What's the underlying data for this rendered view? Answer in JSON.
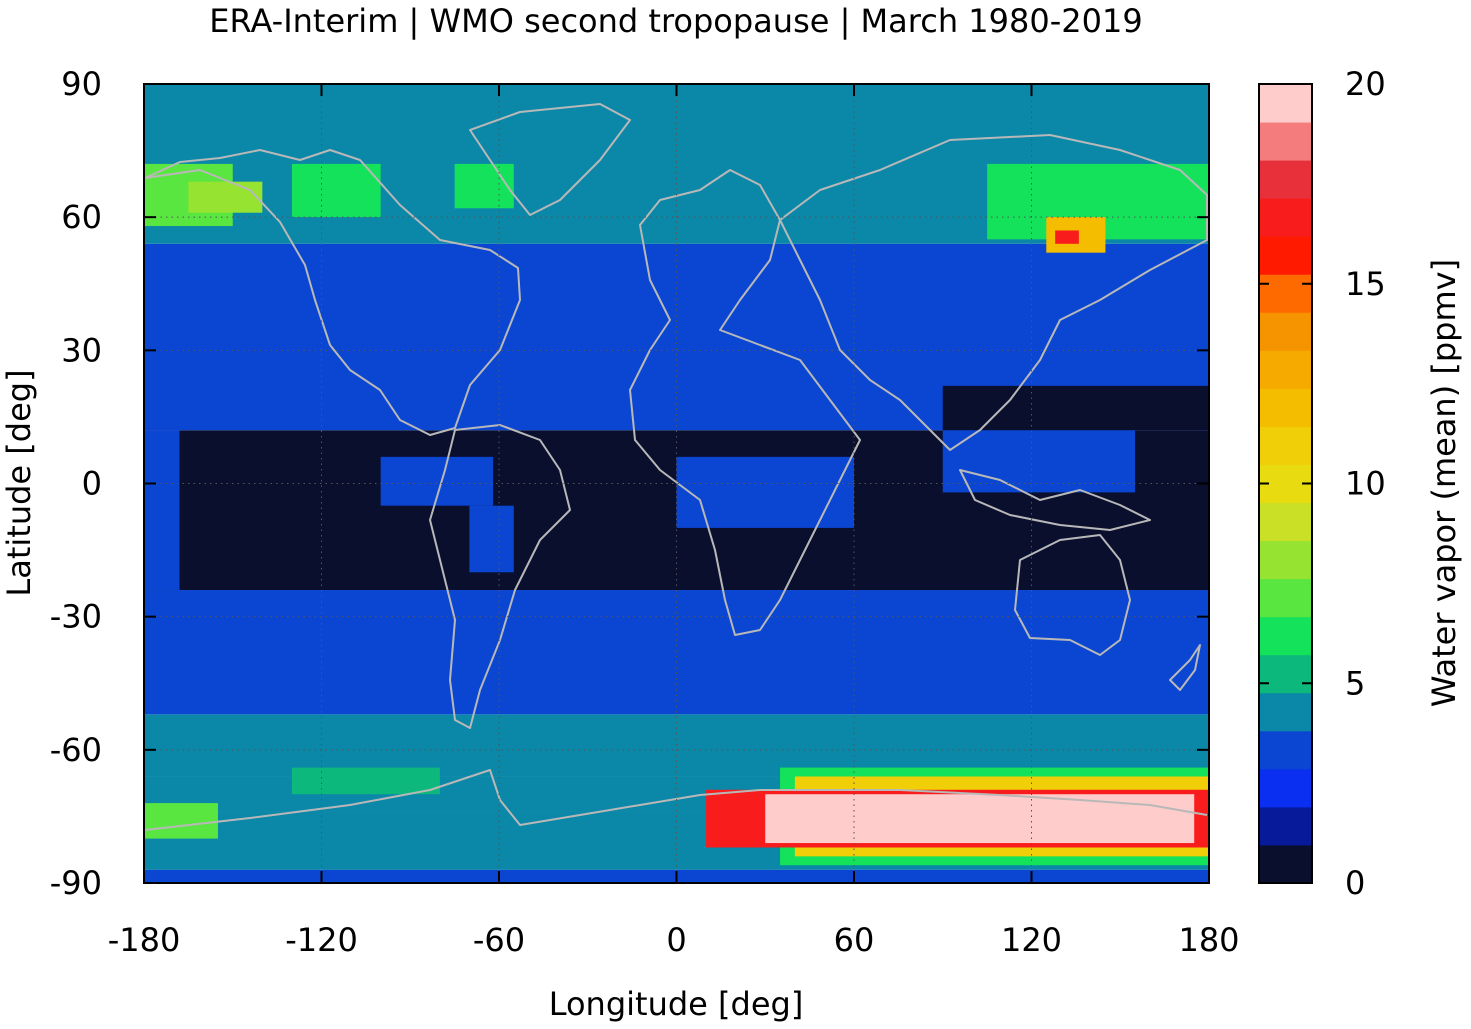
{
  "chart_data": {
    "type": "heatmap",
    "title": "ERA-Interim | WMO second tropopause | March 1980-2019",
    "xlabel": "Longitude [deg]",
    "ylabel": "Latitude [deg]",
    "xlim": [
      -180,
      180
    ],
    "ylim": [
      -90,
      90
    ],
    "x_ticks": [
      "-180",
      "-120",
      "-60",
      "0",
      "60",
      "120",
      "180"
    ],
    "y_ticks": [
      "90",
      "60",
      "30",
      "0",
      "-30",
      "-60",
      "-90"
    ],
    "grid": true,
    "colorbar": {
      "label": "Water vapor (mean) [ppmv]",
      "range": [
        0,
        20
      ],
      "ticks": [
        "0",
        "5",
        "10",
        "15",
        "20"
      ],
      "colors": [
        "#0a0f2e",
        "#071a99",
        "#0a2ff0",
        "#0a46d2",
        "#0b87a8",
        "#0db87c",
        "#14e25a",
        "#5ae640",
        "#96e332",
        "#c9e027",
        "#e8dc10",
        "#f0ce08",
        "#f5bd00",
        "#f6aa00",
        "#f69400",
        "#ff6a00",
        "#ff1a00",
        "#f81c1c",
        "#e8303a",
        "#f47c7c",
        "#ffcccc"
      ]
    },
    "bands": [
      {
        "lat": [
          -90,
          -87
        ],
        "value": 3.5
      },
      {
        "lat": [
          -87,
          -82
        ],
        "value": 4.2
      },
      {
        "lat": [
          -82,
          -74
        ],
        "value": 4.0
      },
      {
        "lat": [
          -74,
          -66
        ],
        "value": 4.3
      },
      {
        "lat": [
          -66,
          -52
        ],
        "value": 3.9
      },
      {
        "lat": [
          -52,
          -24
        ],
        "value": 3.5
      },
      {
        "lat": [
          -24,
          12
        ],
        "value": 0.8
      },
      {
        "lat": [
          12,
          54
        ],
        "value": 3.5
      },
      {
        "lat": [
          54,
          90
        ],
        "value": 4.6
      }
    ],
    "regions": [
      {
        "lon": [
          -180,
          -168
        ],
        "lat": [
          -24,
          12
        ],
        "value": 3.5
      },
      {
        "lon": [
          -100,
          -62
        ],
        "lat": [
          -5,
          6
        ],
        "value": 3.0
      },
      {
        "lon": [
          -70,
          -55
        ],
        "lat": [
          -20,
          -5
        ],
        "value": 3.4
      },
      {
        "lon": [
          0,
          60
        ],
        "lat": [
          -10,
          6
        ],
        "value": 3.0
      },
      {
        "lon": [
          90,
          155
        ],
        "lat": [
          -2,
          14
        ],
        "value": 3.1
      },
      {
        "lon": [
          60,
          180
        ],
        "lat": [
          -24,
          -22
        ],
        "value": 0.8
      },
      {
        "lon": [
          90,
          180
        ],
        "lat": [
          12,
          22
        ],
        "value": 0.8
      },
      {
        "lon": [
          -180,
          -150
        ],
        "lat": [
          58,
          72
        ],
        "value": 7.0
      },
      {
        "lon": [
          -165,
          -140
        ],
        "lat": [
          61,
          68
        ],
        "value": 8.0
      },
      {
        "lon": [
          -130,
          -100
        ],
        "lat": [
          60,
          72
        ],
        "value": 6.2
      },
      {
        "lon": [
          -75,
          -55
        ],
        "lat": [
          62,
          72
        ],
        "value": 6.5
      },
      {
        "lon": [
          105,
          180
        ],
        "lat": [
          55,
          72
        ],
        "value": 6.2
      },
      {
        "lon": [
          125,
          145
        ],
        "lat": [
          52,
          60
        ],
        "value": 12.0
      },
      {
        "lon": [
          128,
          136
        ],
        "lat": [
          54,
          57
        ],
        "value": 17.0
      },
      {
        "lon": [
          -180,
          -155
        ],
        "lat": [
          -80,
          -72
        ],
        "value": 7.5
      },
      {
        "lon": [
          -130,
          -80
        ],
        "lat": [
          -70,
          -64
        ],
        "value": 5.2
      },
      {
        "lon": [
          35,
          180
        ],
        "lat": [
          -86,
          -64
        ],
        "value": 6.5
      },
      {
        "lon": [
          40,
          180
        ],
        "lat": [
          -84,
          -66
        ],
        "value": 11.0
      },
      {
        "lon": [
          10,
          180
        ],
        "lat": [
          -82,
          -69
        ],
        "value": 17.0
      },
      {
        "lon": [
          30,
          175
        ],
        "lat": [
          -81,
          -70
        ],
        "value": 20.0
      }
    ]
  }
}
